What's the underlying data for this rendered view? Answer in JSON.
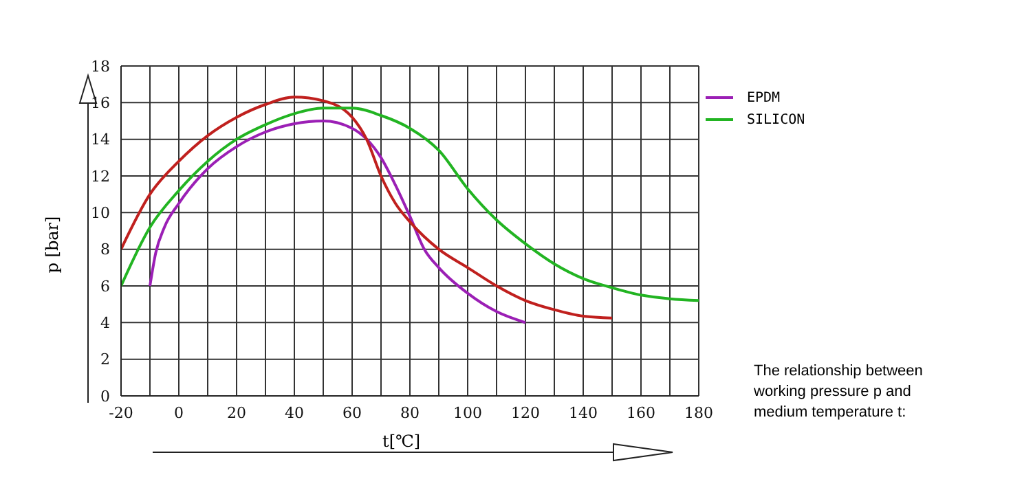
{
  "chart_data": {
    "type": "line",
    "xlabel": "t[℃]",
    "ylabel": "p [bar]",
    "annotations": [
      "The relationship between working pressure p and medium temperature t:"
    ],
    "series": [
      {
        "name": "EPDM",
        "color": "#9b1fb5",
        "x": [
          -10,
          -8,
          -5,
          0,
          10,
          20,
          30,
          40,
          50,
          60,
          70,
          75,
          80,
          85,
          90,
          100,
          110,
          120
        ],
        "values": [
          6,
          7.8,
          9.2,
          10.5,
          12.4,
          13.6,
          14.4,
          14.85,
          15,
          14.6,
          13,
          11.5,
          9.8,
          8,
          7,
          5.6,
          4.6,
          4
        ]
      },
      {
        "color": "#c0201e",
        "x": [
          -20,
          -10,
          0,
          10,
          20,
          30,
          40,
          50,
          60,
          65,
          70,
          75,
          80,
          90,
          100,
          110,
          120,
          130,
          140,
          150
        ],
        "values": [
          8,
          11,
          12.8,
          14.2,
          15.2,
          15.9,
          16.3,
          16.1,
          15.2,
          14,
          12,
          10.5,
          9.5,
          8,
          7,
          6,
          5.2,
          4.7,
          4.35,
          4.25
        ]
      },
      {
        "name": "SILICON",
        "color": "#22b422",
        "x": [
          -20,
          -10,
          0,
          10,
          20,
          30,
          40,
          50,
          60,
          70,
          80,
          90,
          100,
          110,
          120,
          130,
          140,
          150,
          160,
          170,
          180
        ],
        "values": [
          6,
          9.2,
          11.2,
          12.8,
          14,
          14.8,
          15.4,
          15.7,
          15.7,
          15.3,
          14.6,
          13.4,
          11.3,
          9.6,
          8.3,
          7.2,
          6.4,
          5.9,
          5.5,
          5.3,
          5.2
        ]
      }
    ],
    "xlim": [
      -20,
      180
    ],
    "xticks": [
      -20,
      {
        "value": -10,
        "label": null
      },
      0,
      {
        "value": 10,
        "label": null
      },
      20,
      {
        "value": 30,
        "label": null
      },
      40,
      {
        "value": 50,
        "label": null
      },
      60,
      {
        "value": 70,
        "label": null
      },
      80,
      {
        "value": 90,
        "label": null
      },
      100,
      {
        "value": 110,
        "label": null
      },
      120,
      {
        "value": 130,
        "label": null
      },
      140,
      {
        "value": 150,
        "label": null
      },
      160,
      {
        "value": 170,
        "label": null
      },
      180
    ],
    "ylim": [
      0,
      18
    ],
    "yticks": [
      0,
      2,
      4,
      6,
      8,
      10,
      12,
      14,
      16,
      18
    ],
    "grid": true,
    "legend": "top right",
    "marker": "none",
    "line_style": "solid"
  }
}
